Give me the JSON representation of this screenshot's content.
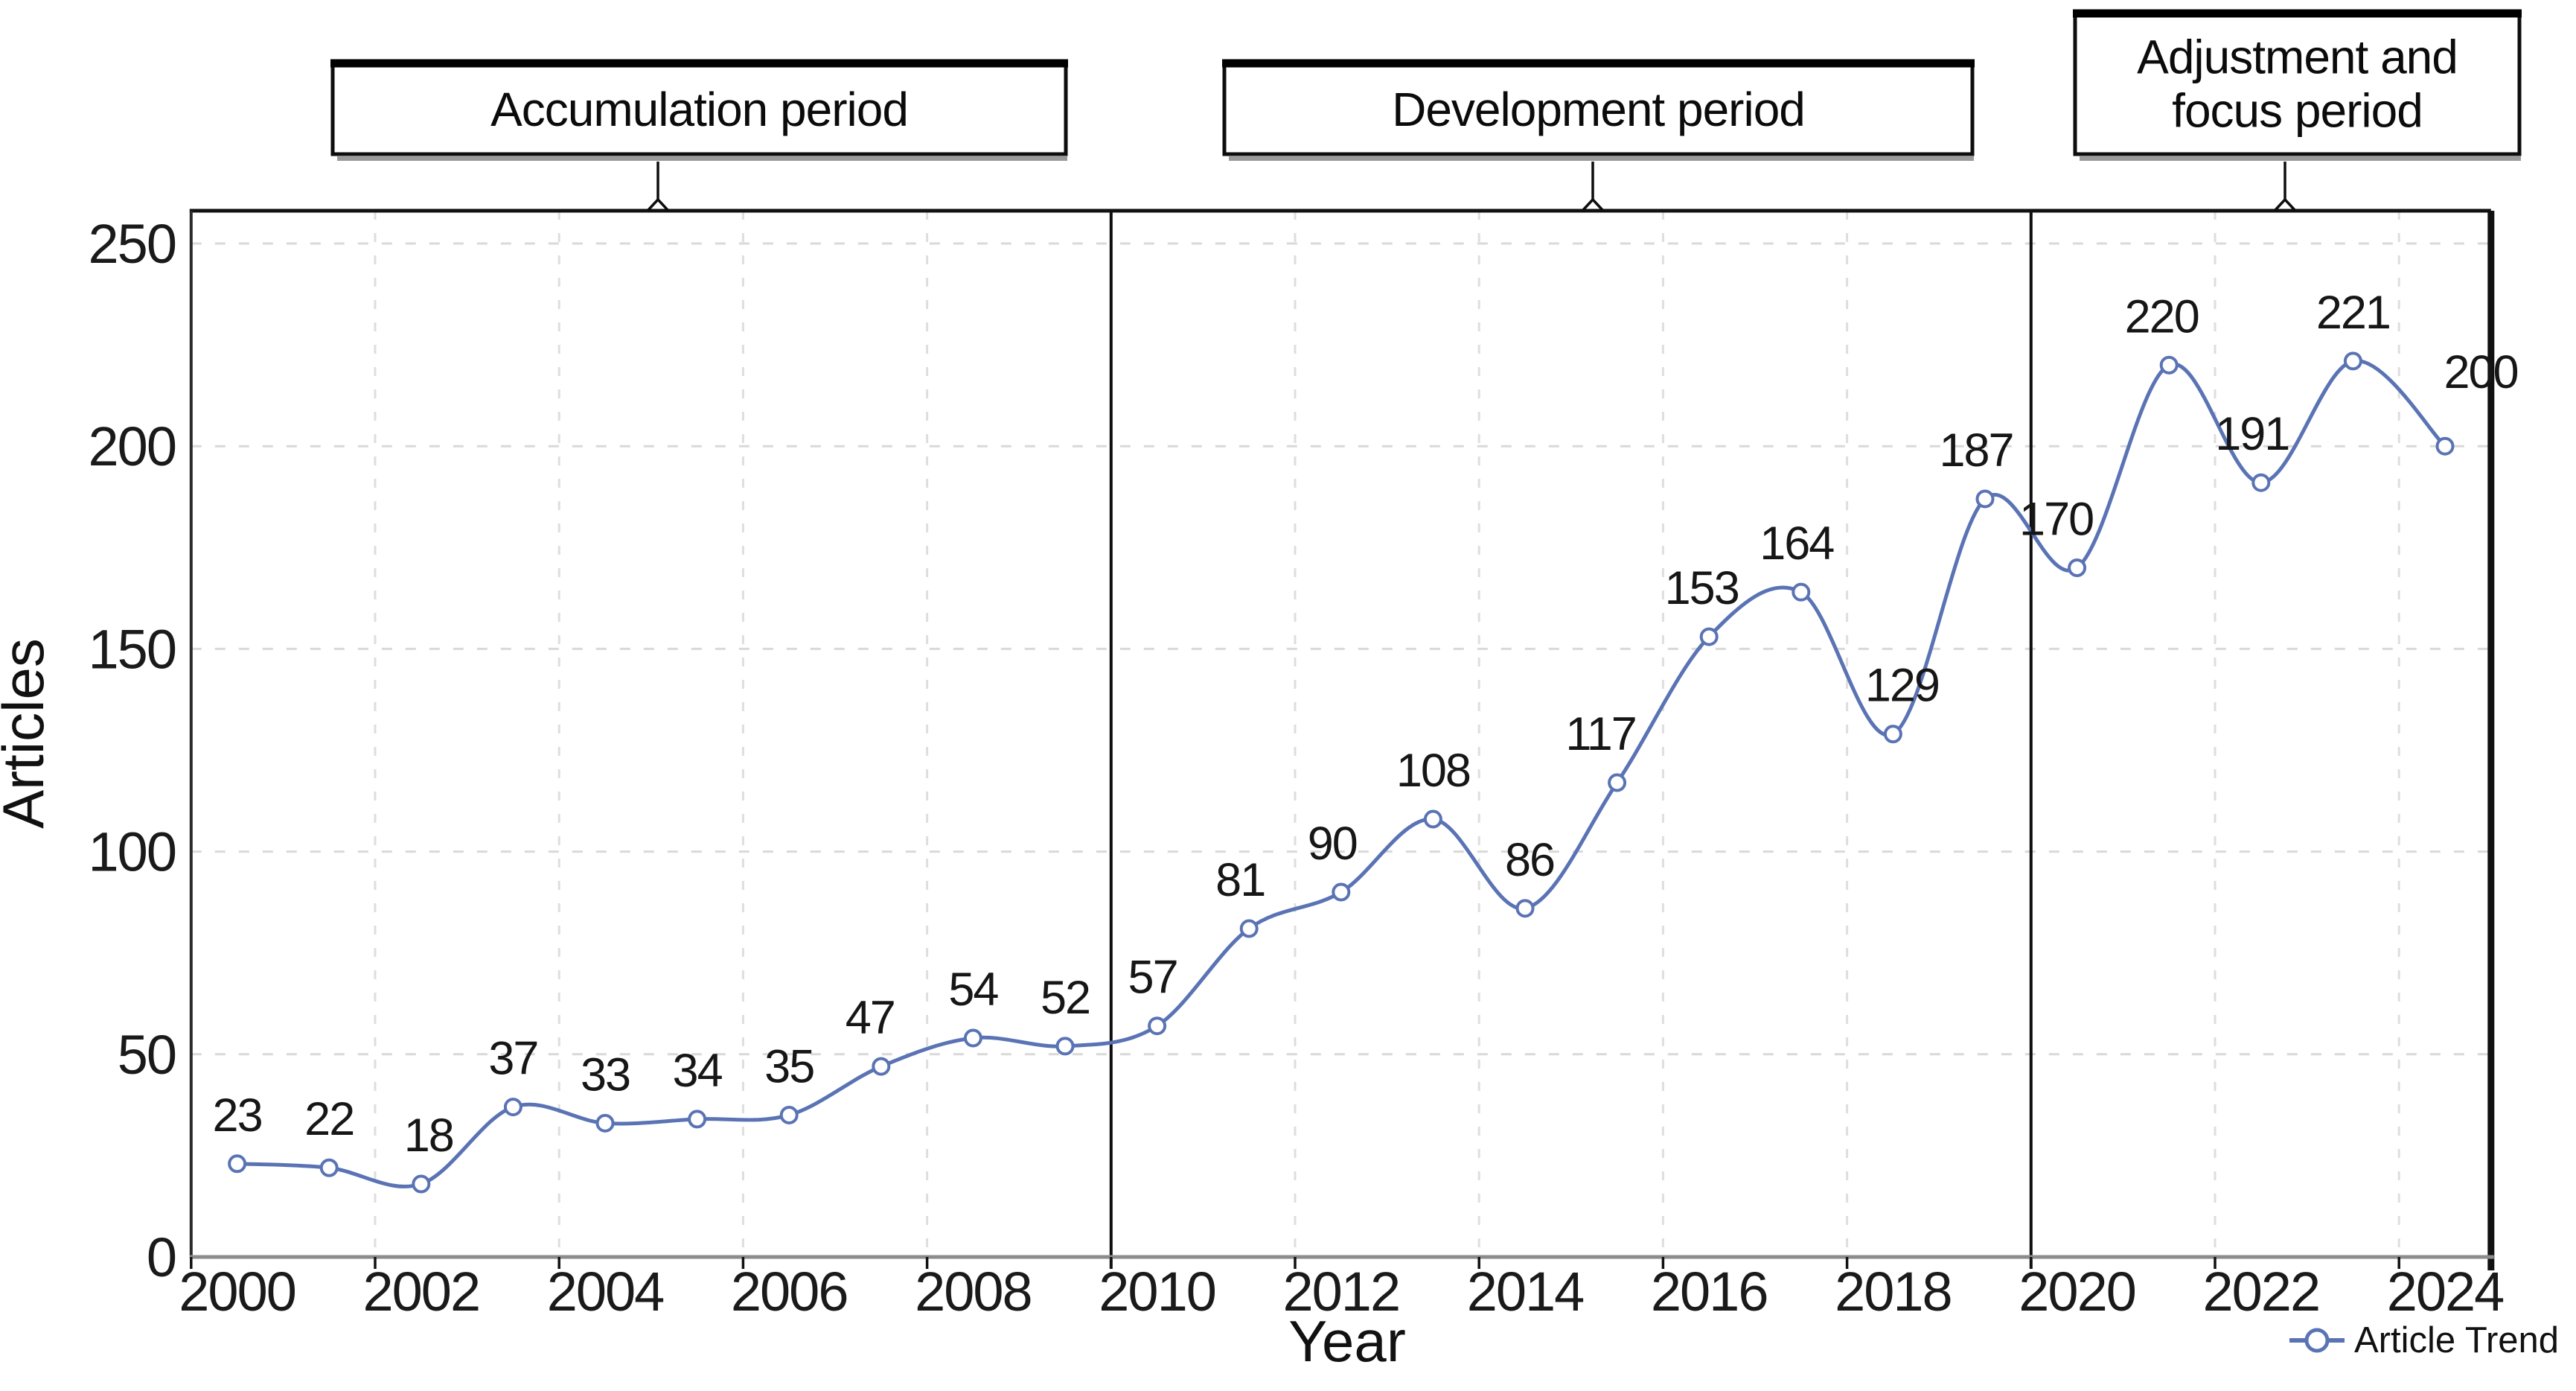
{
  "chart_data": {
    "type": "line",
    "title": "",
    "xlabel": "Year",
    "ylabel": "Articles",
    "x": [
      2000,
      2001,
      2002,
      2003,
      2004,
      2005,
      2006,
      2007,
      2008,
      2009,
      2010,
      2011,
      2012,
      2013,
      2014,
      2015,
      2016,
      2017,
      2018,
      2019,
      2020,
      2021,
      2022,
      2023,
      2024
    ],
    "series": [
      {
        "name": "Article Trend",
        "values": [
          23,
          22,
          18,
          37,
          33,
          34,
          35,
          47,
          54,
          52,
          57,
          81,
          90,
          108,
          86,
          117,
          153,
          164,
          129,
          187,
          170,
          220,
          191,
          221,
          200
        ]
      }
    ],
    "ylim": [
      0,
      258
    ],
    "yticks": [
      0,
      50,
      100,
      150,
      200,
      250
    ],
    "xticks": [
      2000,
      2002,
      2004,
      2006,
      2008,
      2010,
      2012,
      2014,
      2016,
      2018,
      2020,
      2022,
      2024
    ],
    "grid": "dashed",
    "legend_position": "bottom-right",
    "line_color": "#5a73b4",
    "marker": "open-circle",
    "marker_fill": "#ffffff",
    "axis_color": "#8c8c8c",
    "border_color": "#111111",
    "grid_color": "#d9d9d9",
    "annotations": {
      "periods": [
        {
          "label": "Accumulation period",
          "lines": [
            "Accumulation period"
          ],
          "start_year": 2000,
          "end_year": 2009
        },
        {
          "label": "Development period",
          "lines": [
            "Development period"
          ],
          "start_year": 2010,
          "end_year": 2019
        },
        {
          "label": "Adjustment and focus period",
          "lines": [
            "Adjustment and",
            "focus period"
          ],
          "start_year": 2020,
          "end_year": 2024
        }
      ],
      "divider_years": [
        2010,
        2020
      ]
    }
  }
}
